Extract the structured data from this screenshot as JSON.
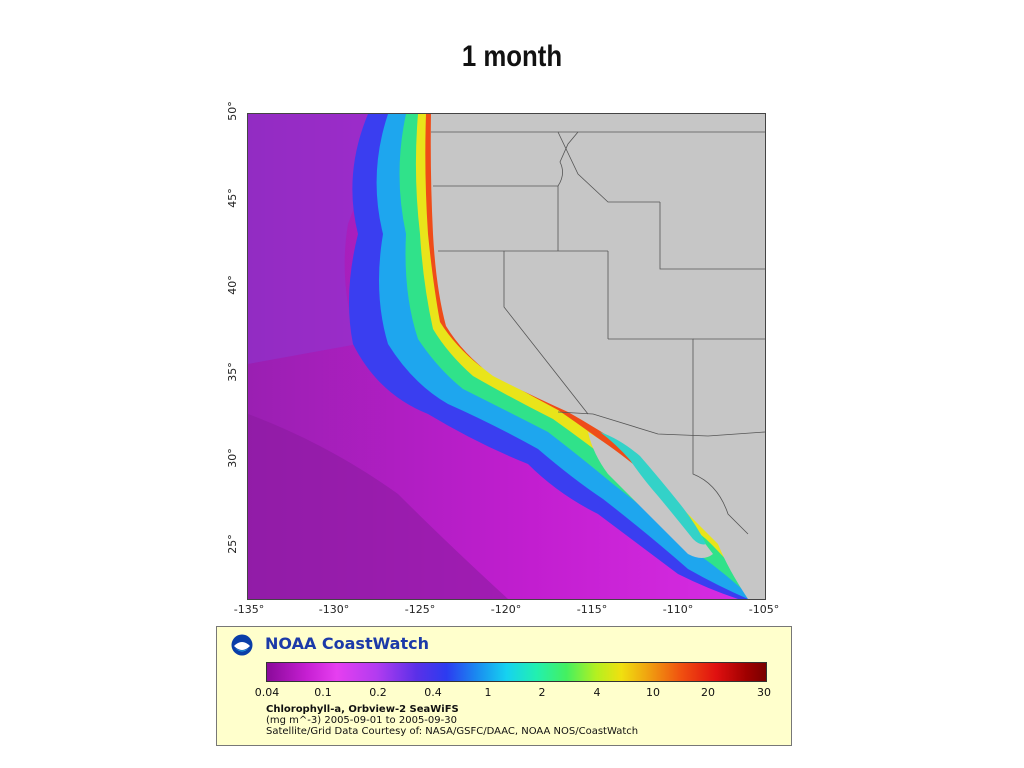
{
  "slide": {
    "title": "1 month"
  },
  "map": {
    "latitude_labels": [
      "50°",
      "45°",
      "40°",
      "35°",
      "30°",
      "25°"
    ],
    "longitude_labels": [
      "-135°",
      "-130°",
      "-125°",
      "-120°",
      "-115°",
      "-110°",
      "-105°"
    ],
    "extent": {
      "lon_min": -135,
      "lon_max": -105,
      "lat_min": 22,
      "lat_max": 50
    },
    "land_color": "#c6c6c6",
    "border_color": "#555555"
  },
  "legend": {
    "brand": "NOAA CoastWatch",
    "logo_icon": "noaa-logo-icon",
    "scale_ticks": [
      "0.04",
      "0.1",
      "0.2",
      "0.4",
      "1",
      "2",
      "4",
      "10",
      "20",
      "30"
    ],
    "product_name": "Chlorophyll-a, Orbview-2 SeaWiFS",
    "units_and_dates": "(mg m^-3) 2005-09-01 to 2005-09-30",
    "credit": "Satellite/Grid Data Courtesy of: NASA/GSFC/DAAC, NOAA NOS/CoastWatch",
    "colors": {
      "background": "#ffffcc",
      "brand_text": "#1c3aa8"
    }
  }
}
